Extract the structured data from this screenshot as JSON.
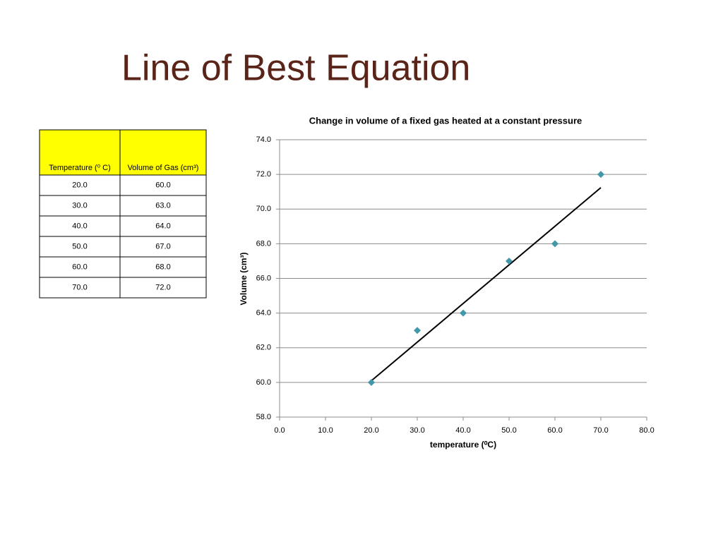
{
  "title": "Line of Best Equation",
  "table": {
    "header": [
      "Temperature (⁰ C)",
      "Volume of Gas  (cm³)"
    ],
    "rows": [
      [
        "20.0",
        "60.0"
      ],
      [
        "30.0",
        "63.0"
      ],
      [
        "40.0",
        "64.0"
      ],
      [
        "50.0",
        "67.0"
      ],
      [
        "60.0",
        "68.0"
      ],
      [
        "70.0",
        "72.0"
      ]
    ]
  },
  "chart_data": {
    "type": "scatter",
    "title": "Change in volume of a fixed gas heated at a constant pressure",
    "x_label": "temperature (⁰C)",
    "y_label": "Volume (cm³)",
    "x": [
      20,
      30,
      40,
      50,
      60,
      70
    ],
    "values": [
      60,
      63,
      64,
      67,
      68,
      72
    ],
    "color": "#4297a9",
    "trendline": "linear",
    "grid": true,
    "xlim": [
      0,
      80
    ],
    "xticks": [
      {
        "value": 0,
        "label": "0.0"
      },
      {
        "value": 10,
        "label": "10.0"
      },
      {
        "value": 20,
        "label": "20.0"
      },
      {
        "value": 30,
        "label": "30.0"
      },
      {
        "value": 40,
        "label": "40.0"
      },
      {
        "value": 50,
        "label": "50.0"
      },
      {
        "value": 60,
        "label": "60.0"
      },
      {
        "value": 70,
        "label": "70.0"
      },
      {
        "value": 80,
        "label": "80.0"
      }
    ],
    "ylim": [
      58,
      74
    ],
    "yticks": [
      {
        "value": 58,
        "label": "58.0"
      },
      {
        "value": 60,
        "label": "60.0"
      },
      {
        "value": 62,
        "label": "62.0"
      },
      {
        "value": 64,
        "label": "64.0"
      },
      {
        "value": 66,
        "label": "66.0"
      },
      {
        "value": 68,
        "label": "68.0"
      },
      {
        "value": 70,
        "label": "70.0"
      },
      {
        "value": 72,
        "label": "72.0"
      },
      {
        "value": 74,
        "label": "74.0"
      }
    ]
  }
}
